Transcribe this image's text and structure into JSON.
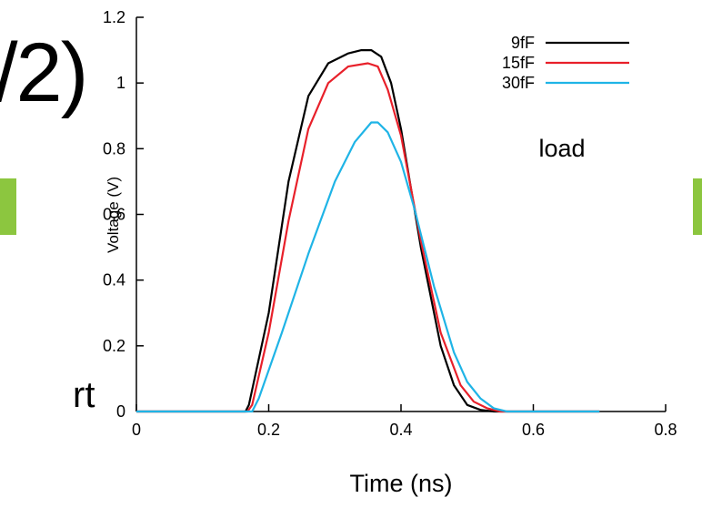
{
  "slide": {
    "title_fragment": "/2)",
    "bullet_fragment": "rt",
    "accent_color": "#8cc63f"
  },
  "chart_data": {
    "type": "line",
    "xlabel": "Time (ns)",
    "ylabel": "Voltage (V)",
    "xlim": [
      0,
      0.8
    ],
    "ylim": [
      0,
      1.2
    ],
    "x_ticks": [
      "0",
      "0.2",
      "0.4",
      "0.6",
      "0.8"
    ],
    "y_ticks": [
      "0",
      "0.2",
      "0.4",
      "0.6",
      "0.8",
      "1",
      "1.2"
    ],
    "grid": false,
    "legend_position": "top-right",
    "annotation": "load",
    "series": [
      {
        "name": "9fF",
        "color": "#000000",
        "x": [
          0,
          0.165,
          0.17,
          0.2,
          0.23,
          0.26,
          0.29,
          0.32,
          0.34,
          0.355,
          0.37,
          0.385,
          0.4,
          0.43,
          0.46,
          0.48,
          0.5,
          0.52,
          0.54,
          0.6,
          0.7
        ],
        "y": [
          0,
          0,
          0.02,
          0.3,
          0.7,
          0.96,
          1.06,
          1.09,
          1.1,
          1.1,
          1.08,
          1.0,
          0.86,
          0.5,
          0.2,
          0.08,
          0.02,
          0.005,
          0,
          0,
          0
        ]
      },
      {
        "name": "15fF",
        "color": "#e8202a",
        "x": [
          0,
          0.168,
          0.175,
          0.2,
          0.23,
          0.26,
          0.29,
          0.32,
          0.35,
          0.365,
          0.38,
          0.4,
          0.43,
          0.46,
          0.49,
          0.51,
          0.53,
          0.55,
          0.7
        ],
        "y": [
          0,
          0,
          0.02,
          0.24,
          0.58,
          0.86,
          1.0,
          1.05,
          1.06,
          1.05,
          0.98,
          0.84,
          0.52,
          0.24,
          0.08,
          0.03,
          0.01,
          0,
          0
        ]
      },
      {
        "name": "30fF",
        "color": "#1fb4e6",
        "x": [
          0,
          0.175,
          0.185,
          0.22,
          0.26,
          0.3,
          0.33,
          0.355,
          0.365,
          0.38,
          0.4,
          0.42,
          0.45,
          0.48,
          0.5,
          0.52,
          0.54,
          0.56,
          0.7
        ],
        "y": [
          0,
          0,
          0.04,
          0.24,
          0.48,
          0.7,
          0.82,
          0.88,
          0.88,
          0.85,
          0.76,
          0.62,
          0.38,
          0.18,
          0.09,
          0.04,
          0.01,
          0,
          0
        ]
      }
    ]
  }
}
